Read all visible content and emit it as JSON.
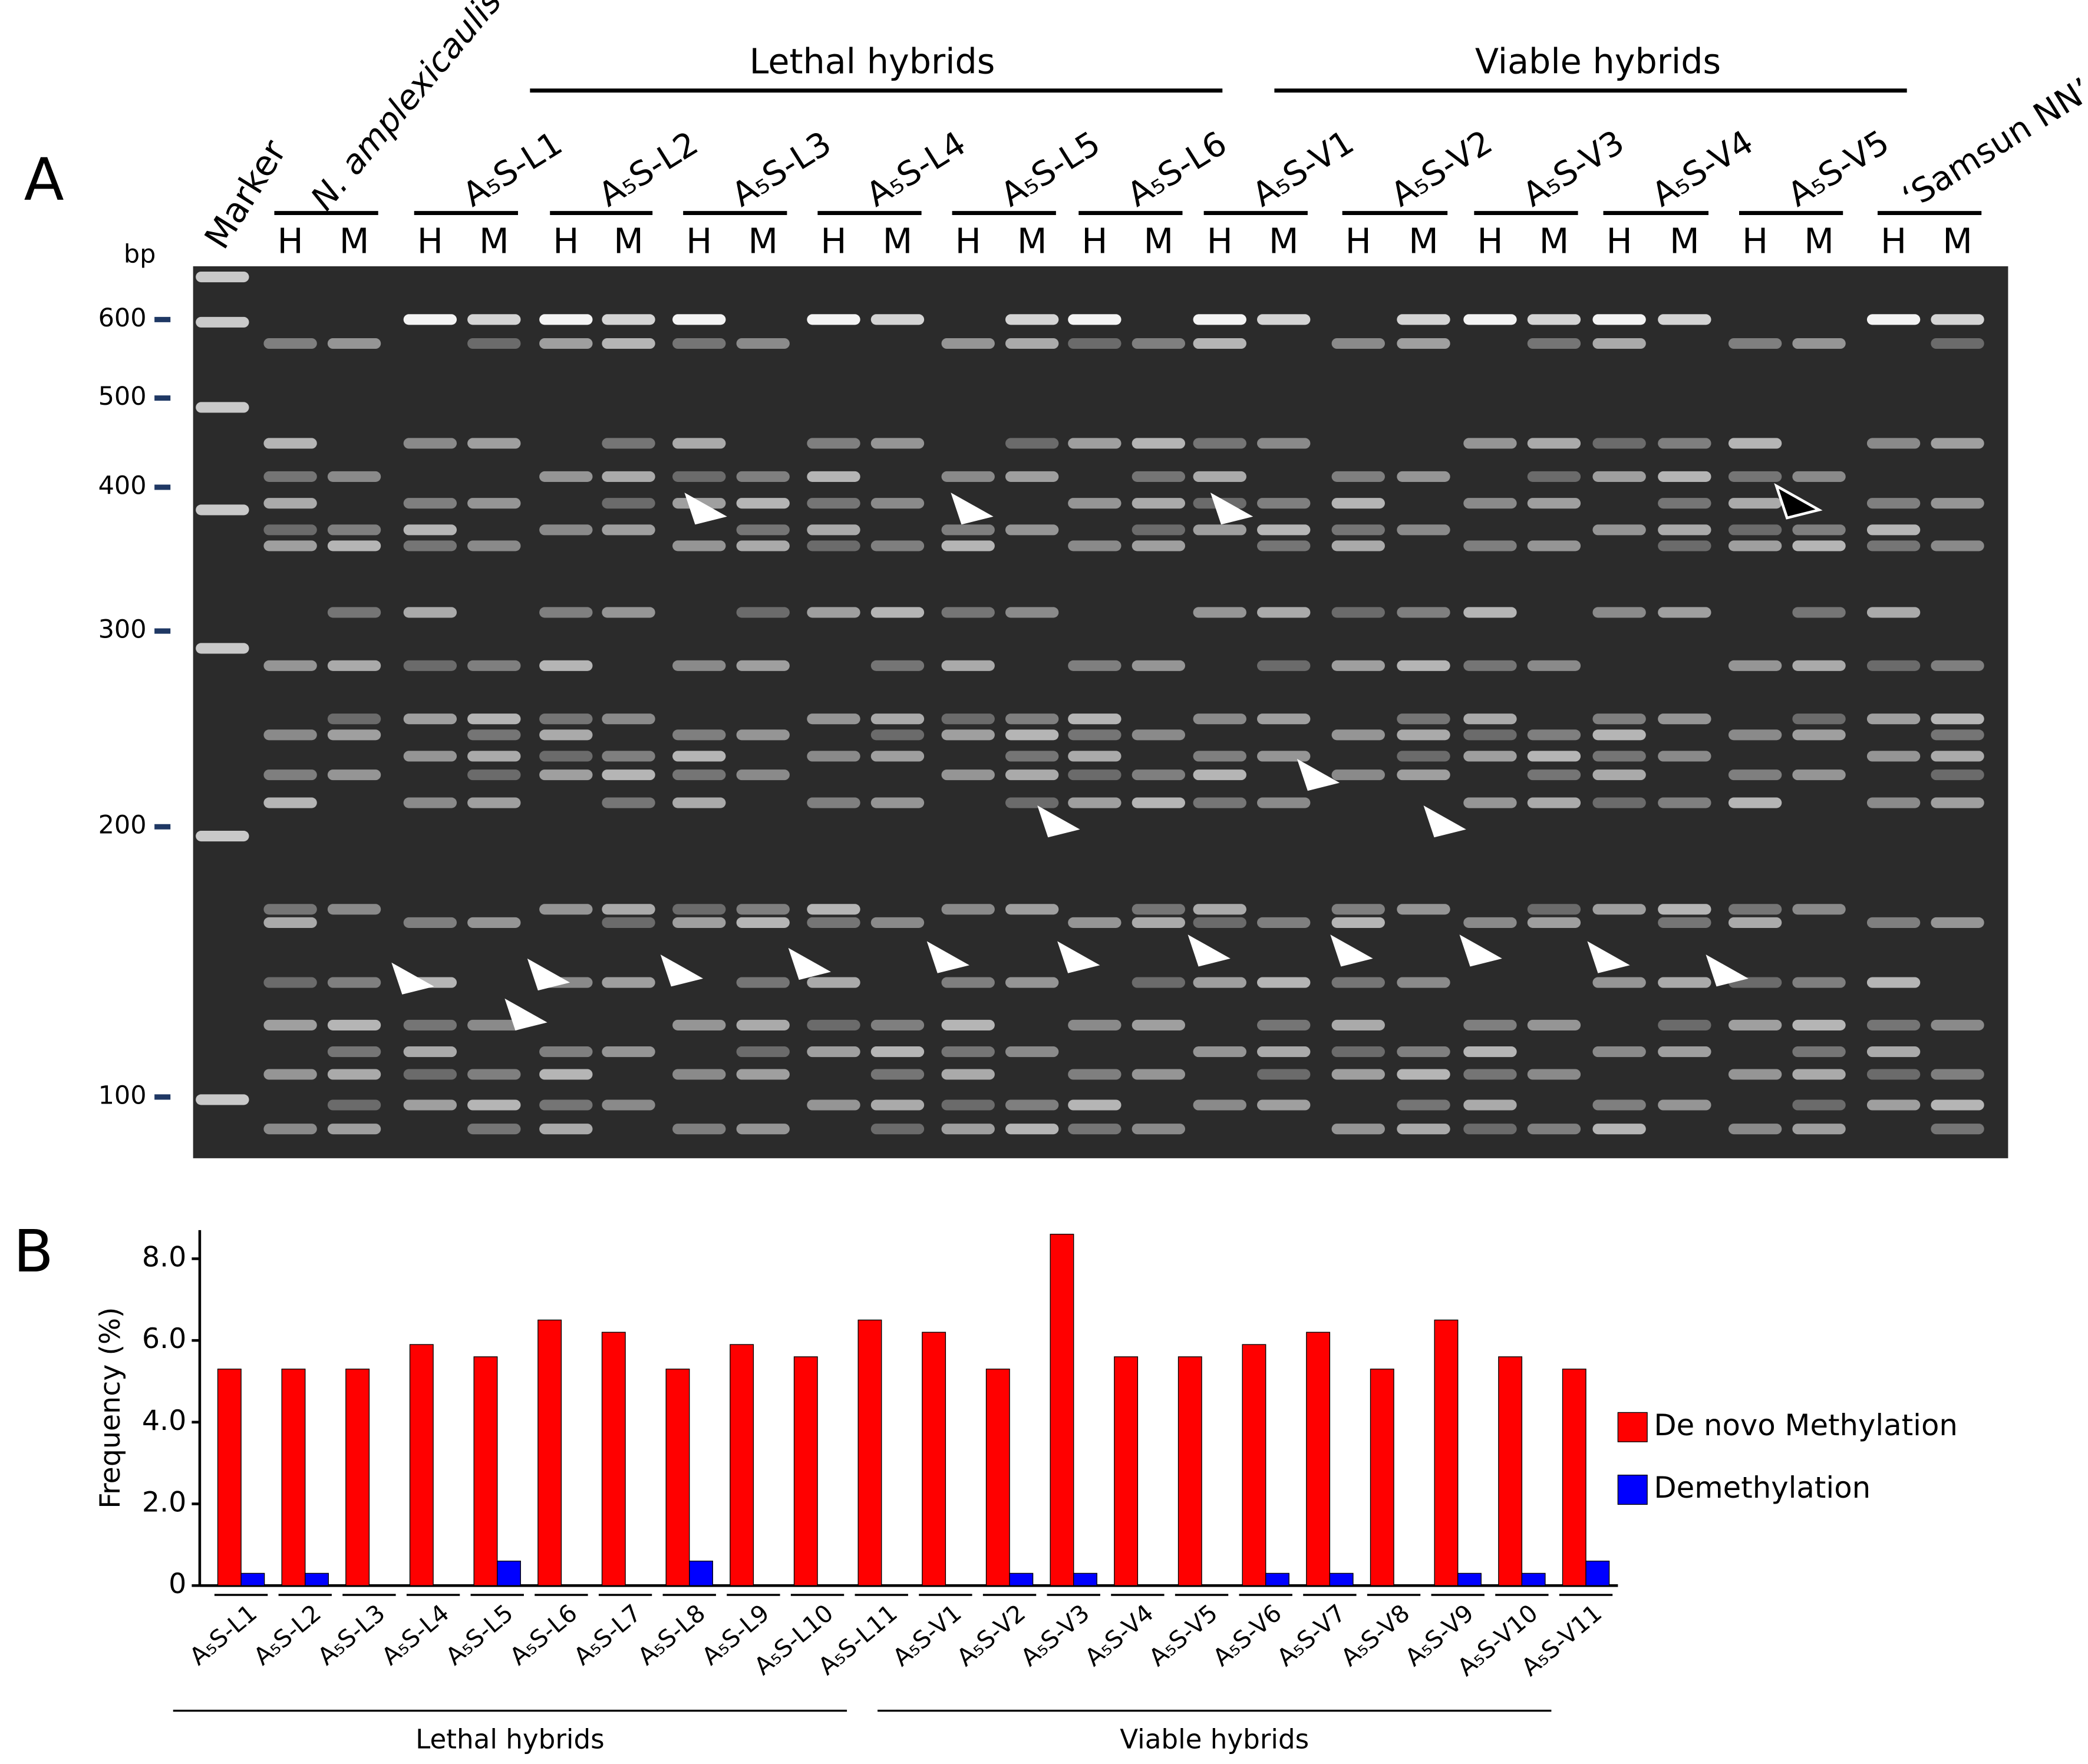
{
  "panel_a": {
    "panel_label": "A",
    "group_labels": [
      "Lethal hybrids",
      "Viable hybrids"
    ],
    "marker_label": "Marker",
    "lanes": [
      "N. amplexicaulis",
      "A₅S-L1",
      "A₅S-L2",
      "A₅S-L3",
      "A₅S-L4",
      "A₅S-L5",
      "A₅S-L6",
      "A₅S-V1",
      "A₅S-V2",
      "A₅S-V3",
      "A₅S-V4",
      "A₅S-V5",
      "‘Samsun NN’"
    ],
    "lane_letters": [
      "H",
      "M"
    ],
    "size_unit": "bp",
    "size_ticks": [
      600,
      500,
      400,
      300,
      200,
      100
    ]
  },
  "chart_data": {
    "type": "bar",
    "panel_label": "B",
    "y_label": "Frequency (%)",
    "categories": [
      "A₅S-L1",
      "A₅S-L2",
      "A₅S-L3",
      "A₅S-L4",
      "A₅S-L5",
      "A₅S-L6",
      "A₅S-L7",
      "A₅S-L8",
      "A₅S-L9",
      "A₅S-L10",
      "A₅S-L11",
      "A₅S-V1",
      "A₅S-V2",
      "A₅S-V3",
      "A₅S-V4",
      "A₅S-V5",
      "A₅S-V6",
      "A₅S-V7",
      "A₅S-V8",
      "A₅S-V9",
      "A₅S-V10",
      "A₅S-V11"
    ],
    "series": [
      {
        "name": "De novo Methylation",
        "color": "#ff0000",
        "values": [
          5.3,
          5.3,
          5.3,
          5.9,
          5.6,
          6.5,
          6.2,
          5.3,
          5.9,
          5.6,
          6.5,
          6.2,
          5.3,
          8.6,
          5.6,
          5.6,
          5.9,
          6.2,
          5.3,
          6.5,
          5.6,
          5.3
        ]
      },
      {
        "name": "Demethylation",
        "color": "#0000ff",
        "values": [
          0.3,
          0.3,
          0,
          0,
          0.6,
          0,
          0,
          0.6,
          0,
          0,
          0,
          0,
          0.3,
          0.3,
          0,
          0,
          0.3,
          0.3,
          0,
          0.3,
          0.3,
          0.6
        ]
      }
    ],
    "ylim": [
      0,
      8.7
    ],
    "yticks": [
      0,
      {
        "value": 2,
        "label": "2.0"
      },
      {
        "value": 4,
        "label": "4.0"
      },
      {
        "value": 6,
        "label": "6.0"
      },
      {
        "value": 8,
        "label": "8.0"
      }
    ],
    "group_labels": [
      "Lethal hybrids",
      "Viable hybrids"
    ],
    "legend": "right"
  }
}
